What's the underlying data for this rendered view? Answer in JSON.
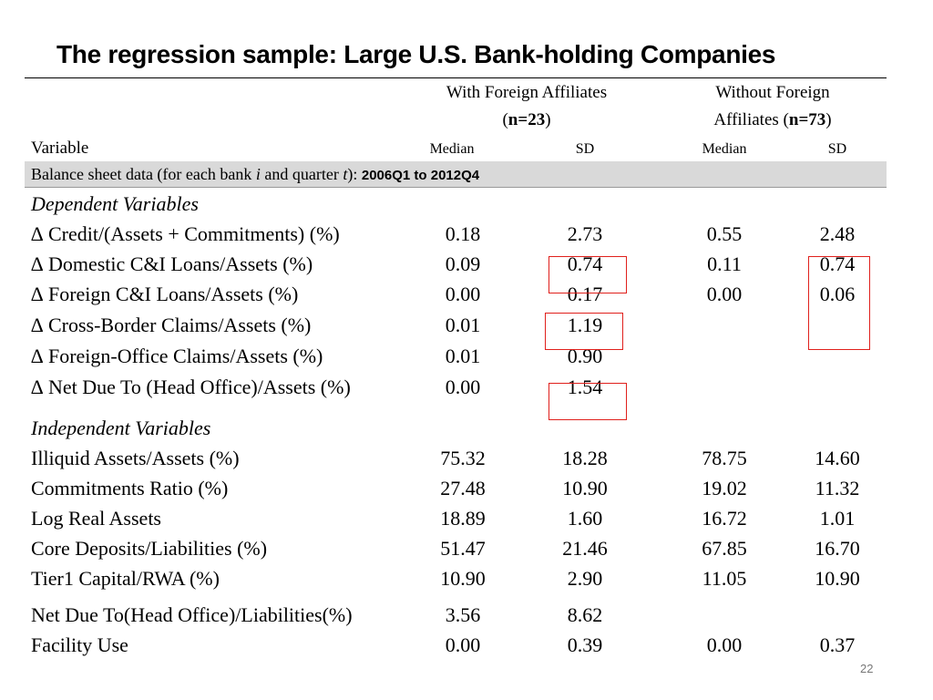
{
  "title": "The regression sample: Large U.S. Bank-holding Companies",
  "header": {
    "group1_line1": "With Foreign Affiliates",
    "group1_line2_pre": "(",
    "group1_n": "n=23",
    "group1_line2_post": ")",
    "group2_line1": "Without Foreign",
    "group2_line2_pre": "Affiliates (",
    "group2_n": "n=73",
    "group2_line2_post": ")",
    "variable": "Variable",
    "median1": "Median",
    "sd1": "SD",
    "median2": "Median",
    "sd2": "SD"
  },
  "band": {
    "text_pre": "Balance sheet data (for each bank ",
    "i": "i",
    "text_mid": " and quarter ",
    "t": "t",
    "text_post": "): ",
    "period": "2006Q1 to 2012Q4"
  },
  "dependent": {
    "heading": "Dependent Variables",
    "rows": [
      {
        "label": "∆ Credit/(Assets + Commitments) (%)",
        "med1": "0.18",
        "sd1": "2.73",
        "med2": "0.55",
        "sd2": "2.48"
      },
      {
        "label": "∆ Domestic C&I Loans/Assets (%)",
        "med1": "0.09",
        "sd1": "0.74",
        "med2": "0.11",
        "sd2": "0.74"
      },
      {
        "label": "∆ Foreign C&I Loans/Assets (%)",
        "med1": "0.00",
        "sd1": "0.17",
        "med2": "0.00",
        "sd2": "0.06"
      },
      {
        "label": "∆ Cross-Border Claims/Assets (%)",
        "med1": "0.01",
        "sd1": "1.19",
        "med2": "",
        "sd2": ""
      },
      {
        "label": "∆ Foreign-Office Claims/Assets (%)",
        "med1": "0.01",
        "sd1": "0.90",
        "med2": "",
        "sd2": ""
      },
      {
        "label": "∆ Net Due To (Head Office)/Assets (%)",
        "med1": "0.00",
        "sd1": "1.54",
        "med2": "",
        "sd2": ""
      }
    ]
  },
  "independent": {
    "heading": "Independent Variables",
    "rows": [
      {
        "label": "Illiquid Assets/Assets (%)",
        "med1": "75.32",
        "sd1": "18.28",
        "med2": "78.75",
        "sd2": "14.60"
      },
      {
        "label": "Commitments Ratio (%)",
        "med1": "27.48",
        "sd1": "10.90",
        "med2": "19.02",
        "sd2": "11.32"
      },
      {
        "label": "Log Real Assets",
        "med1": "18.89",
        "sd1": "1.60",
        "med2": "16.72",
        "sd2": "1.01"
      },
      {
        "label": "Core Deposits/Liabilities (%)",
        "med1": "51.47",
        "sd1": "21.46",
        "med2": "67.85",
        "sd2": "16.70"
      },
      {
        "label": "Tier1 Capital/RWA (%)",
        "med1": "10.90",
        "sd1": "2.90",
        "med2": "11.05",
        "sd2": "10.90"
      },
      {
        "label": "Net Due To(Head Office)/Liabilities(%)",
        "med1": "3.56",
        "sd1": "8.62",
        "med2": "",
        "sd2": ""
      },
      {
        "label": "Facility Use",
        "med1": "0.00",
        "sd1": "0.39",
        "med2": "0.00",
        "sd2": "0.37"
      }
    ]
  },
  "page_number": "22",
  "colors": {
    "highlight_box": "#e0201c",
    "band_bg": "#d9d9d9"
  }
}
